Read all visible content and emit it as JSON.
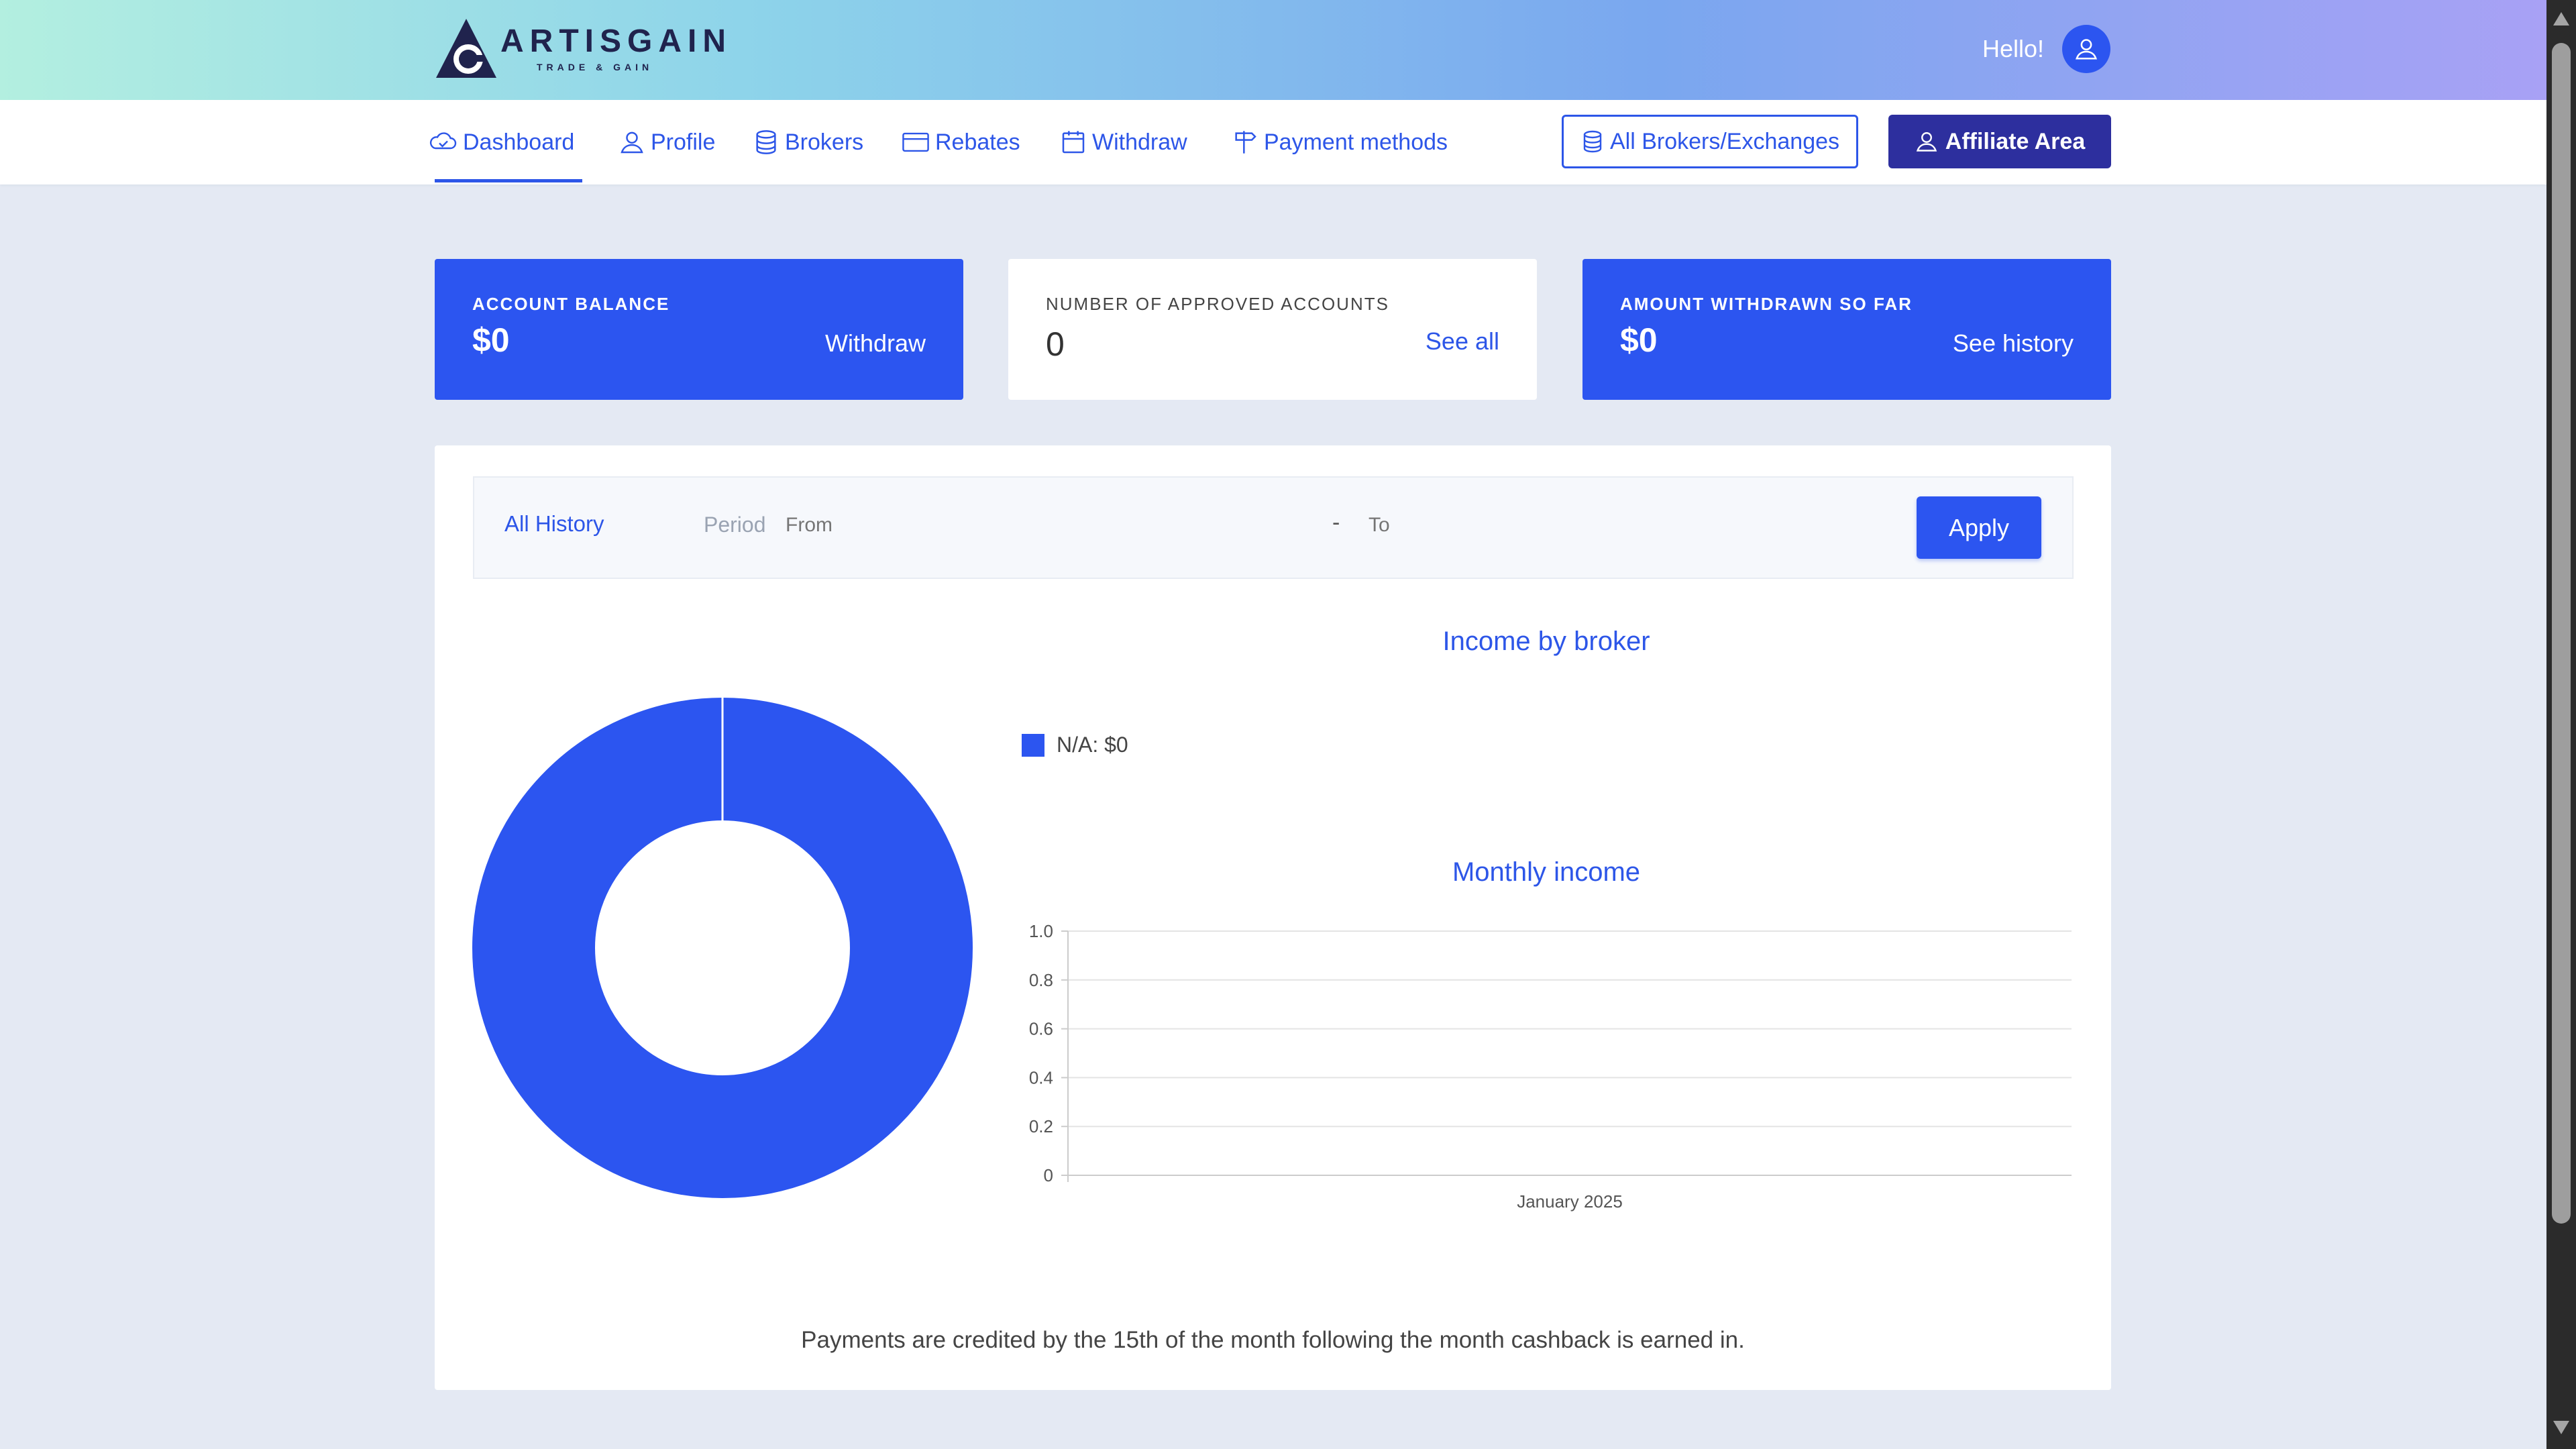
{
  "brand": {
    "name": "ARTISGAIN",
    "tagline": "TRADE & GAIN",
    "logo_letter": "G"
  },
  "header": {
    "greeting": "Hello!",
    "avatar_icon": "user-icon"
  },
  "nav": {
    "items": [
      {
        "label": "Dashboard",
        "icon": "cloud-icon",
        "active": true
      },
      {
        "label": "Profile",
        "icon": "user-icon"
      },
      {
        "label": "Brokers",
        "icon": "database-icon"
      },
      {
        "label": "Rebates",
        "icon": "credit-card-icon"
      },
      {
        "label": "Withdraw",
        "icon": "calendar-icon"
      },
      {
        "label": "Payment methods",
        "icon": "signpost-icon"
      }
    ],
    "all_brokers_label": "All Brokers/Exchanges",
    "affiliate_label": "Affiliate Area"
  },
  "cards": {
    "balance": {
      "label": "ACCOUNT BALANCE",
      "value": "$0",
      "action": "Withdraw"
    },
    "approved": {
      "label": "NUMBER OF APPROVED ACCOUNTS",
      "value": "0",
      "action": "See all"
    },
    "withdrawn": {
      "label": "AMOUNT WITHDRAWN SO FAR",
      "value": "$0",
      "action": "See history"
    }
  },
  "filter": {
    "all_history": "All History",
    "period": "Period",
    "from_placeholder": "From",
    "dash": "-",
    "to_placeholder": "To",
    "apply": "Apply"
  },
  "broker_chart": {
    "title": "Income by broker",
    "legend": "N/A: $0"
  },
  "monthly_chart": {
    "title": "Monthly income"
  },
  "chart_data": [
    {
      "type": "pie",
      "title": "Income by broker",
      "categories": [
        "N/A"
      ],
      "values": [
        0
      ],
      "legend": [
        "N/A: $0"
      ],
      "color": "#2c55f0"
    },
    {
      "type": "line",
      "title": "Monthly income",
      "x": [
        "January 2025"
      ],
      "series": [
        {
          "values": [
            0
          ]
        }
      ],
      "ylim": [
        0,
        1.0
      ],
      "yticks": [
        "0",
        "0.2",
        "0.4",
        "0.6",
        "0.8",
        "1.0"
      ],
      "grid": true
    }
  ],
  "footnote": "Payments are credited by the 15th of the month following the month cashback is earned in.",
  "colors": {
    "accent": "#2c55f0",
    "dark_button": "#2d2f9e",
    "background": "#e4e9f3"
  }
}
